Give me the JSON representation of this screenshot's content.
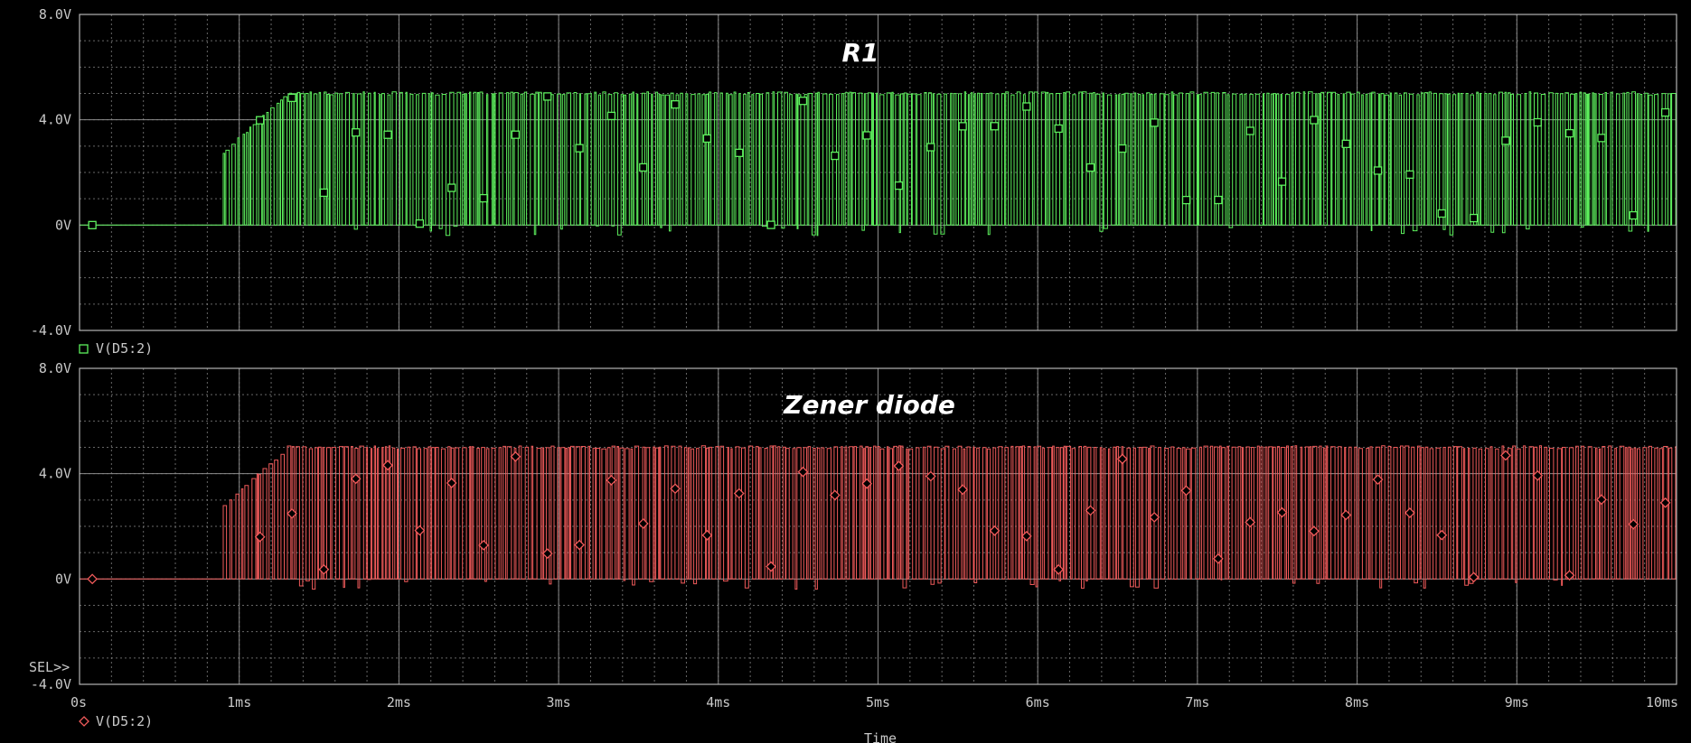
{
  "window": {
    "background": "#000000",
    "grid_color": "#8a8a8a",
    "axis_color": "#b4b4b4"
  },
  "sel_label": "SEL>>",
  "x_axis": {
    "title": "Time",
    "ticks": [
      "0s",
      "1ms",
      "2ms",
      "3ms",
      "4ms",
      "5ms",
      "6ms",
      "7ms",
      "8ms",
      "9ms",
      "10ms"
    ]
  },
  "chart_data": [
    {
      "type": "line",
      "title": "R1",
      "legend": "V(D5:2)",
      "marker": "square",
      "color": "#5df05d",
      "xlim": [
        0,
        10
      ],
      "x_unit": "ms",
      "ylim": [
        -4,
        8
      ],
      "y_ticks": [
        "8.0V",
        "4.0V",
        "0V",
        "-4.0V"
      ],
      "grid": true,
      "series_description": "0 V until ~0.9 ms, then rapid pulse train switching between ~0 V and ~5.0 V until 10 ms",
      "low_level": 0,
      "high_level": 5.0,
      "switching_start_ms": 0.9
    },
    {
      "type": "line",
      "title": "Zener diode",
      "legend": "V(D5:2)",
      "marker": "diamond",
      "color": "#f05a5a",
      "xlim": [
        0,
        10
      ],
      "x_unit": "ms",
      "ylim": [
        -4,
        8
      ],
      "y_ticks": [
        "8.0V",
        "4.0V",
        "0V",
        "-4.0V"
      ],
      "grid": true,
      "series_description": "0 V until ~0.9 ms, then rapid pulse train switching between ~0 V and ~5.0 V until 10 ms",
      "low_level": 0,
      "high_level": 5.0,
      "switching_start_ms": 0.9
    }
  ]
}
